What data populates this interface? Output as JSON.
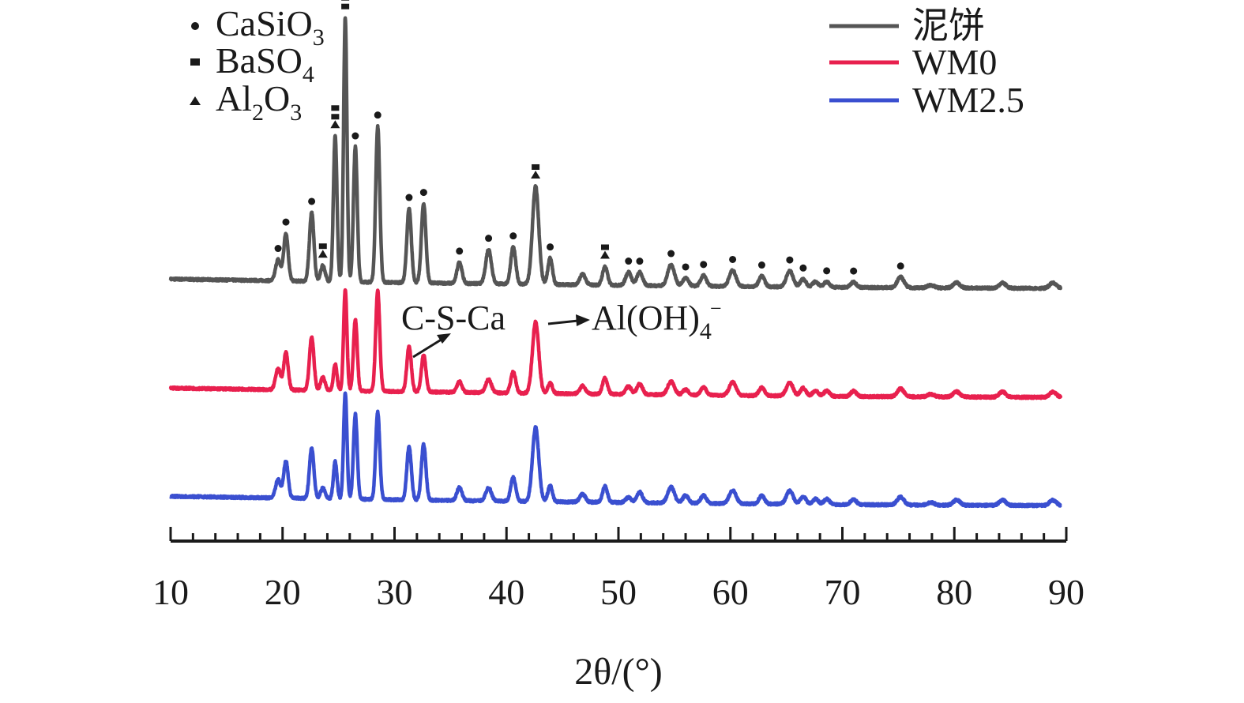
{
  "chart_data": {
    "type": "line",
    "title": "",
    "xlabel": "2θ/(°)",
    "ylabel": "",
    "xlim": [
      10,
      90
    ],
    "xticks": [
      10,
      20,
      30,
      40,
      50,
      60,
      70,
      80,
      90
    ],
    "grid": false,
    "legend_position": "top-right",
    "phase_legend": [
      {
        "marker": "circle",
        "label": "CaSiO",
        "sub": "3"
      },
      {
        "marker": "square",
        "label": "BaSO",
        "sub": "4"
      },
      {
        "marker": "triangle",
        "label": "Al",
        "sub": "2",
        "label2": "O",
        "sub2": "3"
      }
    ],
    "annotations": [
      {
        "text": "C-S-Ca",
        "x": 37.5
      },
      {
        "text": "Al(OH)",
        "sub": "4",
        "sup": "−",
        "x": 46
      }
    ],
    "peaks": [
      {
        "x": 19.6,
        "h": [
          0.08,
          0.08,
          0.07
        ],
        "w": 0.22
      },
      {
        "x": 20.3,
        "h": [
          0.18,
          0.14,
          0.14
        ],
        "w": 0.2
      },
      {
        "x": 22.6,
        "h": [
          0.26,
          0.2,
          0.19
        ],
        "w": 0.2
      },
      {
        "x": 23.6,
        "h": [
          0.06,
          0.05,
          0.04
        ],
        "w": 0.2
      },
      {
        "x": 24.7,
        "h": [
          0.55,
          0.1,
          0.14
        ],
        "w": 0.16
      },
      {
        "x": 25.6,
        "h": [
          1.0,
          0.38,
          0.4
        ],
        "w": 0.15
      },
      {
        "x": 26.5,
        "h": [
          0.51,
          0.27,
          0.32
        ],
        "w": 0.17
      },
      {
        "x": 28.5,
        "h": [
          0.59,
          0.38,
          0.33
        ],
        "w": 0.18
      },
      {
        "x": 31.3,
        "h": [
          0.28,
          0.17,
          0.2
        ],
        "w": 0.2
      },
      {
        "x": 32.6,
        "h": [
          0.3,
          0.14,
          0.21
        ],
        "w": 0.2
      },
      {
        "x": 35.8,
        "h": [
          0.08,
          0.04,
          0.05
        ],
        "w": 0.22
      },
      {
        "x": 38.4,
        "h": [
          0.13,
          0.05,
          0.05
        ],
        "w": 0.25
      },
      {
        "x": 40.6,
        "h": [
          0.14,
          0.08,
          0.09
        ],
        "w": 0.22
      },
      {
        "x": 42.6,
        "h": [
          0.37,
          0.27,
          0.28
        ],
        "w": 0.28
      },
      {
        "x": 43.9,
        "h": [
          0.1,
          0.04,
          0.06
        ],
        "w": 0.2
      },
      {
        "x": 46.8,
        "h": [
          0.04,
          0.03,
          0.03
        ],
        "w": 0.25
      },
      {
        "x": 48.8,
        "h": [
          0.07,
          0.06,
          0.06
        ],
        "w": 0.22
      },
      {
        "x": 50.9,
        "h": [
          0.05,
          0.03,
          0.02
        ],
        "w": 0.25
      },
      {
        "x": 51.9,
        "h": [
          0.05,
          0.04,
          0.04
        ],
        "w": 0.25
      },
      {
        "x": 54.7,
        "h": [
          0.08,
          0.05,
          0.06
        ],
        "w": 0.3
      },
      {
        "x": 56.0,
        "h": [
          0.03,
          0.02,
          0.03
        ],
        "w": 0.25
      },
      {
        "x": 57.6,
        "h": [
          0.04,
          0.03,
          0.03
        ],
        "w": 0.25
      },
      {
        "x": 60.2,
        "h": [
          0.06,
          0.05,
          0.05
        ],
        "w": 0.3
      },
      {
        "x": 62.8,
        "h": [
          0.04,
          0.03,
          0.03
        ],
        "w": 0.25
      },
      {
        "x": 65.3,
        "h": [
          0.06,
          0.05,
          0.05
        ],
        "w": 0.3
      },
      {
        "x": 66.5,
        "h": [
          0.03,
          0.03,
          0.03
        ],
        "w": 0.25
      },
      {
        "x": 67.6,
        "h": [
          0.02,
          0.02,
          0.02
        ],
        "w": 0.25
      },
      {
        "x": 68.6,
        "h": [
          0.02,
          0.02,
          0.02
        ],
        "w": 0.25
      },
      {
        "x": 71.0,
        "h": [
          0.02,
          0.02,
          0.02
        ],
        "w": 0.25
      },
      {
        "x": 75.2,
        "h": [
          0.04,
          0.03,
          0.03
        ],
        "w": 0.3
      },
      {
        "x": 77.9,
        "h": [
          0.01,
          0.01,
          0.01
        ],
        "w": 0.3
      },
      {
        "x": 80.2,
        "h": [
          0.02,
          0.02,
          0.02
        ],
        "w": 0.3
      },
      {
        "x": 84.3,
        "h": [
          0.02,
          0.02,
          0.02
        ],
        "w": 0.3
      },
      {
        "x": 88.8,
        "h": [
          0.02,
          0.02,
          0.02
        ],
        "w": 0.3
      }
    ],
    "series": [
      {
        "name": "泥饼",
        "color": "#555555",
        "baseline_start": 0.035,
        "baseline_end": 0.0
      },
      {
        "name": "WM0",
        "color": "#e8204e",
        "baseline_start": 0.035,
        "baseline_end": 0.0
      },
      {
        "name": "WM2.5",
        "color": "#3a4fd0",
        "baseline_start": 0.035,
        "baseline_end": 0.0
      }
    ],
    "peak_markers": [
      {
        "x": 19.6,
        "symbols": [
          "circle"
        ]
      },
      {
        "x": 20.3,
        "symbols": [
          "circle"
        ]
      },
      {
        "x": 22.6,
        "symbols": [
          "circle"
        ]
      },
      {
        "x": 23.6,
        "symbols": [
          "triangle",
          "square"
        ]
      },
      {
        "x": 24.7,
        "symbols": [
          "triangle",
          "square",
          "square"
        ]
      },
      {
        "x": 25.6,
        "symbols": [
          "square",
          "square",
          "square"
        ]
      },
      {
        "x": 26.5,
        "symbols": [
          "circle"
        ]
      },
      {
        "x": 28.5,
        "symbols": [
          "circle"
        ]
      },
      {
        "x": 31.3,
        "symbols": [
          "circle"
        ]
      },
      {
        "x": 32.6,
        "symbols": [
          "circle"
        ]
      },
      {
        "x": 35.8,
        "symbols": [
          "circle"
        ]
      },
      {
        "x": 38.4,
        "symbols": [
          "circle"
        ]
      },
      {
        "x": 40.6,
        "symbols": [
          "circle"
        ]
      },
      {
        "x": 42.6,
        "symbols": [
          "triangle",
          "square"
        ]
      },
      {
        "x": 43.9,
        "symbols": [
          "circle"
        ]
      },
      {
        "x": 48.8,
        "symbols": [
          "triangle",
          "square"
        ]
      },
      {
        "x": 50.9,
        "symbols": [
          "circle"
        ]
      },
      {
        "x": 51.9,
        "symbols": [
          "circle"
        ]
      },
      {
        "x": 54.7,
        "symbols": [
          "circle"
        ]
      },
      {
        "x": 56.0,
        "symbols": [
          "circle"
        ]
      },
      {
        "x": 57.6,
        "symbols": [
          "circle"
        ]
      },
      {
        "x": 60.2,
        "symbols": [
          "circle"
        ]
      },
      {
        "x": 62.8,
        "symbols": [
          "circle"
        ]
      },
      {
        "x": 65.3,
        "symbols": [
          "circle"
        ]
      },
      {
        "x": 66.5,
        "symbols": [
          "circle"
        ]
      },
      {
        "x": 68.6,
        "symbols": [
          "circle"
        ]
      },
      {
        "x": 71.0,
        "symbols": [
          "circle"
        ]
      },
      {
        "x": 75.2,
        "symbols": [
          "circle"
        ]
      }
    ]
  }
}
